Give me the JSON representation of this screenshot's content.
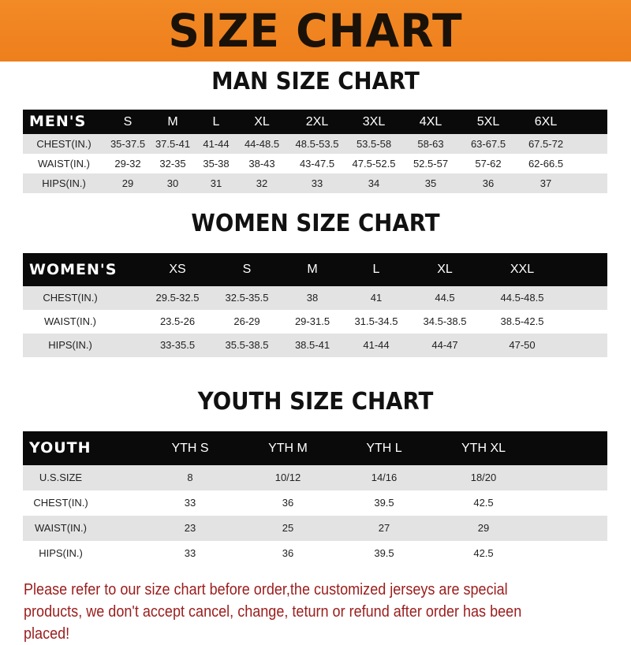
{
  "header": {
    "title": "SIZE CHART",
    "banner_color": "#F08A24"
  },
  "men": {
    "title": "MAN SIZE CHART",
    "columns": [
      "MEN'S",
      "S",
      "M",
      "L",
      "XL",
      "2XL",
      "3XL",
      "4XL",
      "5XL",
      "6XL"
    ],
    "rows": [
      [
        "CHEST(IN.)",
        "35-37.5",
        "37.5-41",
        "41-44",
        "44-48.5",
        "48.5-53.5",
        "53.5-58",
        "58-63",
        "63-67.5",
        "67.5-72"
      ],
      [
        "WAIST(IN.)",
        "29-32",
        "32-35",
        "35-38",
        "38-43",
        "43-47.5",
        "47.5-52.5",
        "52.5-57",
        "57-62",
        "62-66.5"
      ],
      [
        "HIPS(IN.)",
        "29",
        "30",
        "31",
        "32",
        "33",
        "34",
        "35",
        "36",
        "37"
      ]
    ]
  },
  "women": {
    "title": "WOMEN SIZE CHART",
    "columns": [
      "WOMEN'S",
      "XS",
      "S",
      "M",
      "L",
      "XL",
      "XXL"
    ],
    "rows": [
      [
        "CHEST(IN.)",
        "29.5-32.5",
        "32.5-35.5",
        "38",
        "41",
        "44.5",
        "44.5-48.5"
      ],
      [
        "WAIST(IN.)",
        "23.5-26",
        "26-29",
        "29-31.5",
        "31.5-34.5",
        "34.5-38.5",
        "38.5-42.5"
      ],
      [
        "HIPS(IN.)",
        "33-35.5",
        "35.5-38.5",
        "38.5-41",
        "41-44",
        "44-47",
        "47-50"
      ]
    ]
  },
  "youth": {
    "title": "YOUTH SIZE CHART",
    "columns": [
      "YOUTH",
      "YTH S",
      "YTH M",
      "YTH L",
      "YTH XL"
    ],
    "rows": [
      [
        "U.S.SIZE",
        "8",
        "10/12",
        "14/16",
        "18/20"
      ],
      [
        "CHEST(IN.)",
        "33",
        "36",
        "39.5",
        "42.5"
      ],
      [
        "WAIST(IN.)",
        "23",
        "25",
        "27",
        "29"
      ],
      [
        "HIPS(IN.)",
        "33",
        "36",
        "39.5",
        "42.5"
      ]
    ]
  },
  "note": "Please refer to our size chart before order,the customized jerseys are special products, we don't accept cancel, change, teturn or refund after order has been placed!"
}
